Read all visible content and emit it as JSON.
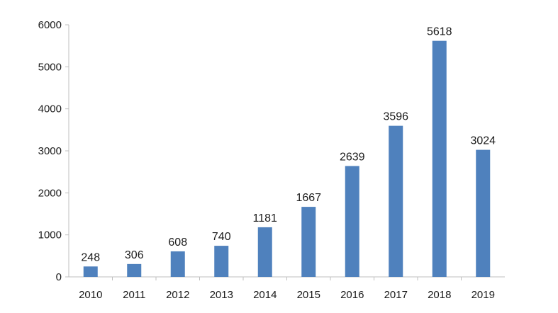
{
  "chart_data": {
    "type": "bar",
    "categories": [
      "2010",
      "2011",
      "2012",
      "2013",
      "2014",
      "2015",
      "2016",
      "2017",
      "2018",
      "2019"
    ],
    "values": [
      248,
      306,
      608,
      740,
      1181,
      1667,
      2639,
      3596,
      5618,
      3024
    ],
    "data_labels": [
      "248",
      "306",
      "608",
      "740",
      "1181",
      "1667",
      "2639",
      "3596",
      "5618",
      "3024"
    ],
    "y_ticks": [
      "0",
      "1000",
      "2000",
      "3000",
      "4000",
      "5000",
      "6000"
    ],
    "ylim": [
      0,
      6000
    ],
    "grid": false,
    "bar_color": "#4f81bd",
    "axis_color": "#bfbfbf"
  }
}
